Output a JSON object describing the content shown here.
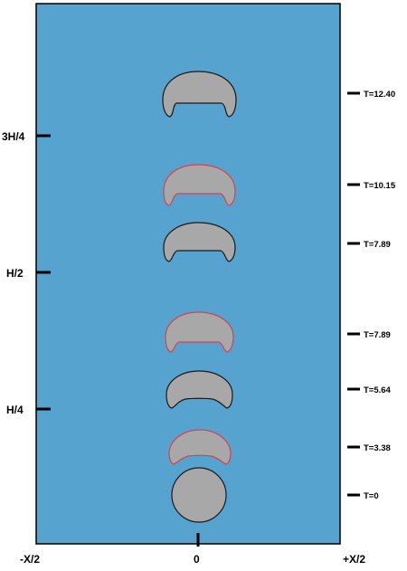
{
  "colors": {
    "domain_fill": "#56a3d0",
    "domain_border": "#000000",
    "bubble_fill": "#a8a8a8",
    "outline_black": "#1a1a1a",
    "outline_red": "#d8404f"
  },
  "left_axis": {
    "labels": [
      "3H/4",
      "H/2",
      "H/4"
    ]
  },
  "bottom_axis": {
    "left": "-X/2",
    "center": "0",
    "right": "+X/2"
  },
  "time_labels": [
    "T=12.40",
    "T=10.15",
    "T=7.89",
    "T=7.89",
    "T=5.64",
    "T=3.38",
    "T=0"
  ],
  "bubbles": [
    {
      "time": "T=12.40",
      "outline": "black",
      "shape": "cap"
    },
    {
      "time": "T=10.15",
      "outline": "red",
      "shape": "cap"
    },
    {
      "time": "T=7.89",
      "outline": "black",
      "shape": "cap"
    },
    {
      "time": "T=7.89",
      "outline": "red",
      "shape": "cap"
    },
    {
      "time": "T=5.64",
      "outline": "black",
      "shape": "cap"
    },
    {
      "time": "T=3.38",
      "outline": "red",
      "shape": "cap"
    },
    {
      "time": "T=0",
      "outline": "black",
      "shape": "circle"
    }
  ]
}
